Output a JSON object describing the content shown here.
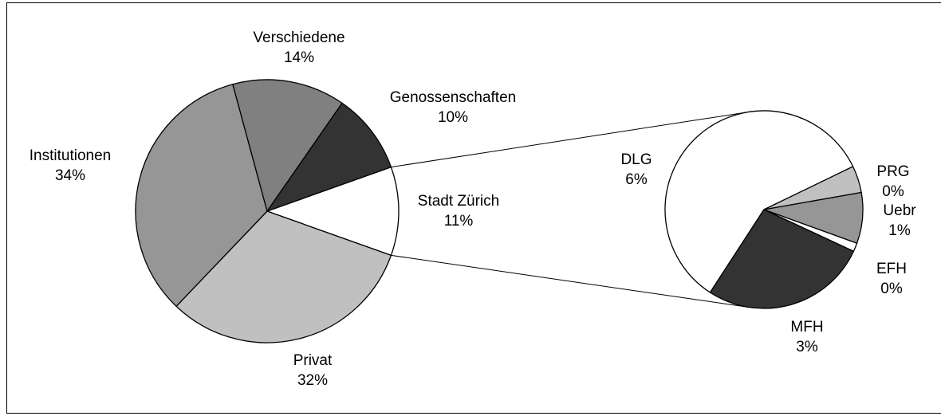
{
  "chart_data": [
    {
      "type": "pie",
      "categories": [
        "Stadt Zürich",
        "Privat",
        "Institutionen",
        "Verschiedene",
        "Genossenschaften"
      ],
      "values": [
        11,
        32,
        34,
        14,
        10
      ],
      "value_labels": [
        "11%",
        "32%",
        "34%",
        "14%",
        "10%"
      ],
      "colors": [
        "#ffffff",
        "#c0c0c0",
        "#969696",
        "#808080",
        "#333333"
      ]
    },
    {
      "type": "pie",
      "categories": [
        "DLG",
        "PRG",
        "Uebr",
        "EFH",
        "MFH"
      ],
      "values": [
        5.86,
        0.44,
        0.83,
        0.14,
        2.72
      ],
      "value_labels": [
        "6%",
        "0%",
        "1%",
        "0%",
        "3%"
      ],
      "colors": [
        "#ffffff",
        "#c0c0c0",
        "#969696",
        "#ffffff",
        "#333333"
      ]
    }
  ]
}
